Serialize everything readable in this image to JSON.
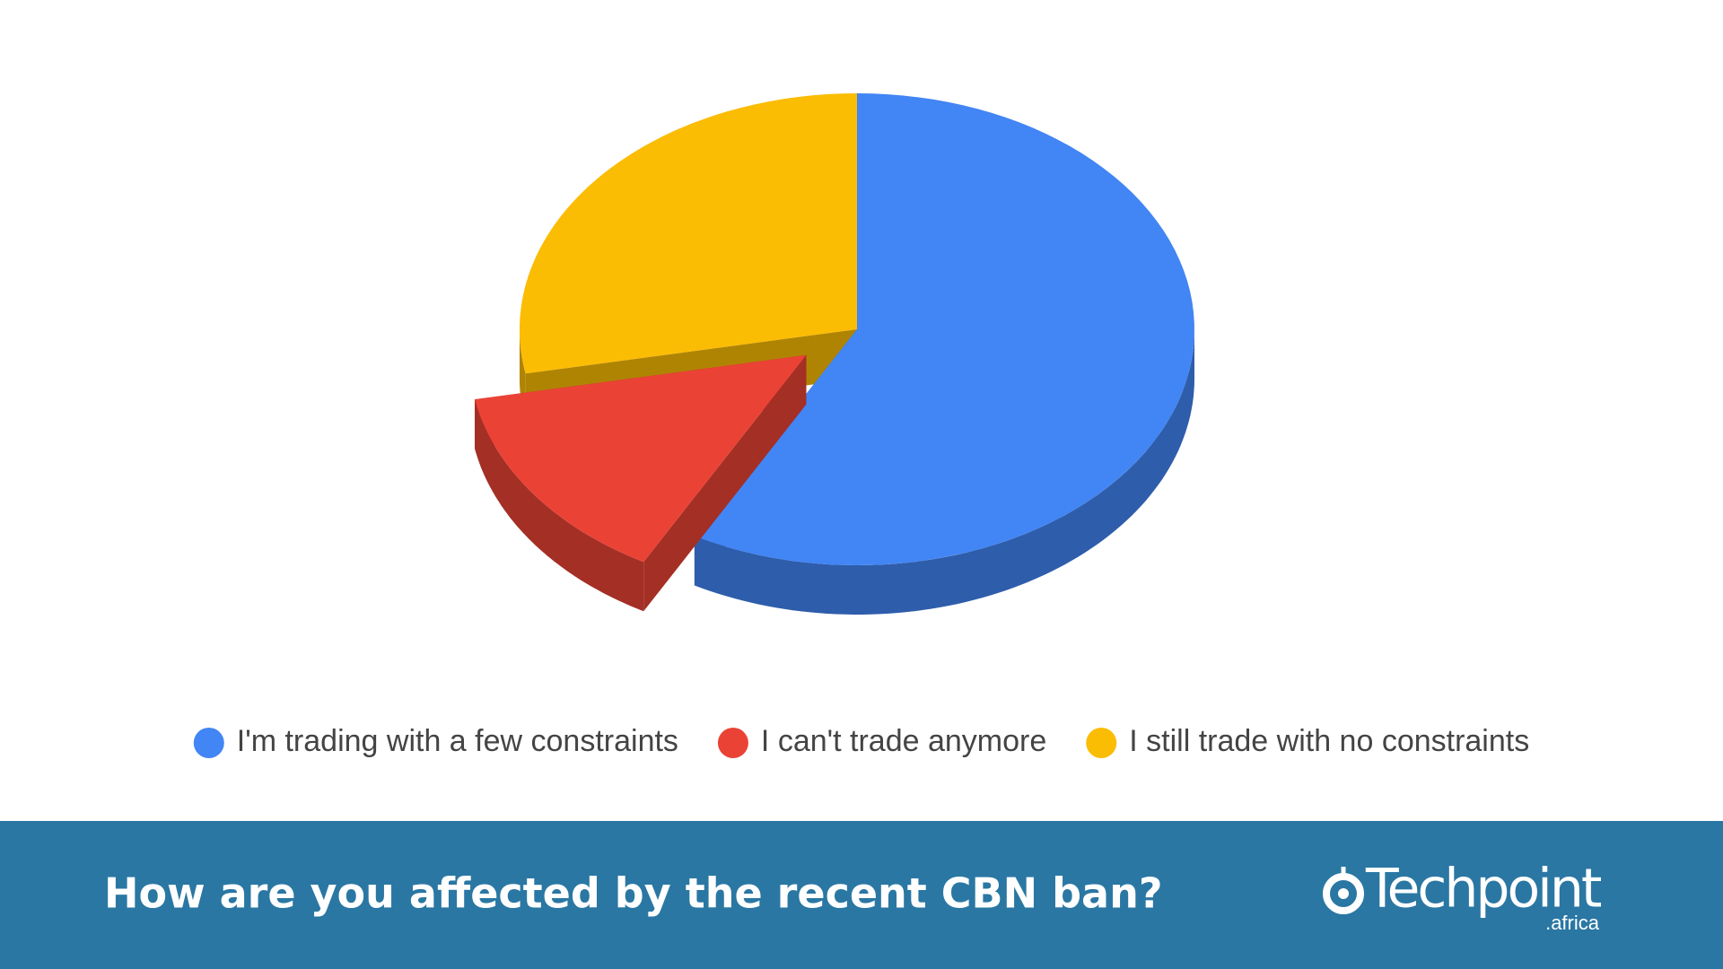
{
  "chart_data": {
    "type": "pie",
    "title": "How are you affected by the recent CBN ban?",
    "categories": [
      "I'm trading with a few constraints",
      "I can't trade anymore",
      "I still trade with no constraints"
    ],
    "values": [
      58,
      14,
      28
    ],
    "colors": [
      "#4285f4",
      "#ea4335",
      "#fbbc04"
    ],
    "exploded": [
      false,
      true,
      false
    ]
  },
  "brand": {
    "name": "Techpoint",
    "suffix": ".africa"
  }
}
